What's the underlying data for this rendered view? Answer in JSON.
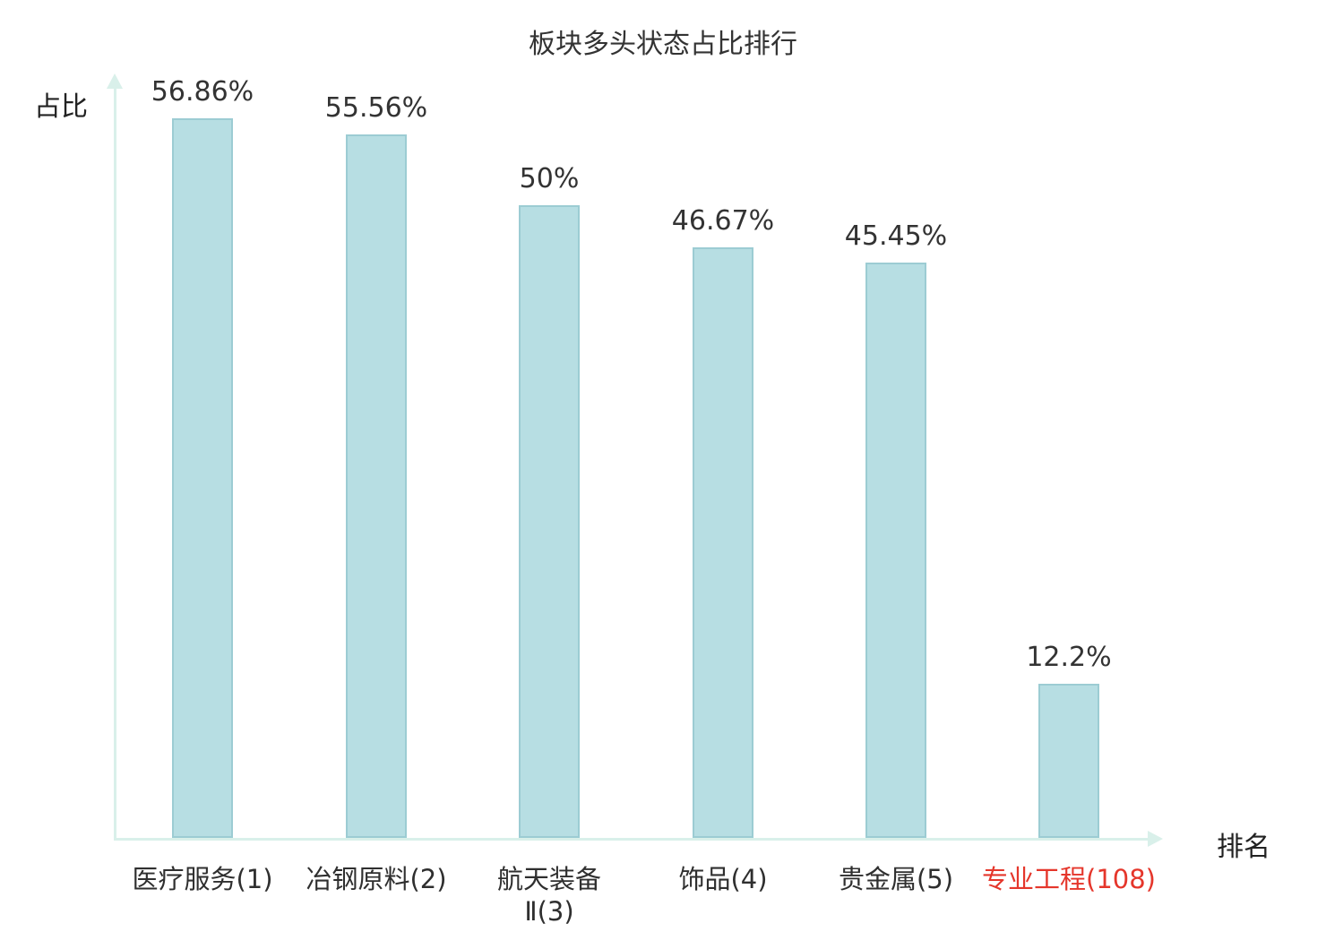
{
  "chart_data": {
    "type": "bar",
    "title": "板块多头状态占比排行",
    "xlabel": "排名",
    "ylabel": "占比",
    "categories": [
      "医疗服务(1)",
      "冶钢原料(2)",
      "航天装备\nⅡ(3)",
      "饰品(4)",
      "贵金属(5)",
      "专业工程(108)"
    ],
    "values": [
      56.86,
      55.56,
      50,
      46.67,
      45.45,
      12.2
    ],
    "value_labels": [
      "56.86%",
      "55.56%",
      "50%",
      "46.67%",
      "45.45%",
      "12.2%"
    ],
    "ylim": [
      0,
      60
    ],
    "grid": false,
    "legend": "none",
    "highlight_index": 5,
    "colors": {
      "bar_fill": "#b7dee3",
      "bar_border": "#9cccd3",
      "axis": "#d9f0ea",
      "text": "#333333",
      "highlight": "#e5362b"
    }
  }
}
